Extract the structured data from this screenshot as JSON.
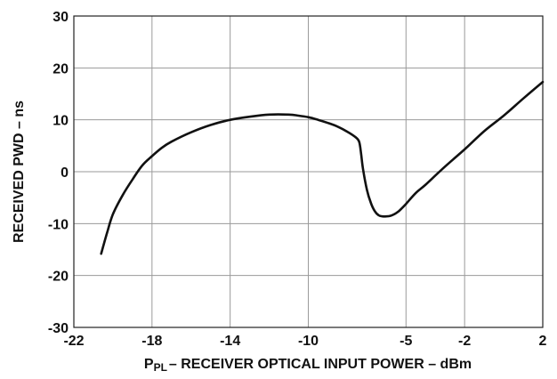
{
  "chart_data": {
    "type": "line",
    "xlabel": "P",
    "xlabel_sub": "PL",
    "xlabel_rest": "– RECEIVER OPTICAL INPUT POWER – dBm",
    "ylabel": "RECEIVED PWD – ns",
    "x_ticks": [
      -22,
      -18,
      -14,
      -10,
      -5,
      -2,
      2
    ],
    "y_ticks": [
      -30,
      -20,
      -10,
      0,
      10,
      20,
      30
    ],
    "xlim": [
      -22,
      2
    ],
    "ylim": [
      -30,
      30
    ],
    "grid": true,
    "series": [
      {
        "x": [
          -20.6,
          -20.3,
          -20.0,
          -19.5,
          -19.0,
          -18.5,
          -18.0,
          -17.5,
          -17.0,
          -16.0,
          -15.0,
          -14.0,
          -13.0,
          -12.0,
          -11.0,
          -10.5,
          -10.0,
          -9.5,
          -9.0,
          -8.5,
          -8.0,
          -7.6,
          -7.4,
          -7.3,
          -7.2,
          -7.0,
          -6.8,
          -6.6,
          -6.4,
          -6.2,
          -6.0,
          -5.8,
          -5.6,
          -5.4,
          -5.2,
          -5.0,
          -4.5,
          -4.0,
          -3.0,
          -2.0,
          -1.0,
          0.0,
          1.0,
          2.0
        ],
        "y": [
          -15.8,
          -11.8,
          -8.2,
          -4.5,
          -1.5,
          1.2,
          3.0,
          4.6,
          5.8,
          7.6,
          9.0,
          10.0,
          10.6,
          11.0,
          11.0,
          10.8,
          10.5,
          10.0,
          9.4,
          8.7,
          7.7,
          6.7,
          5.8,
          3.5,
          0.5,
          -3.5,
          -6.0,
          -7.6,
          -8.4,
          -8.6,
          -8.6,
          -8.5,
          -8.2,
          -7.7,
          -7.0,
          -6.2,
          -4.1,
          -2.5,
          1.0,
          4.3,
          7.8,
          10.8,
          14.1,
          17.3
        ]
      }
    ]
  }
}
